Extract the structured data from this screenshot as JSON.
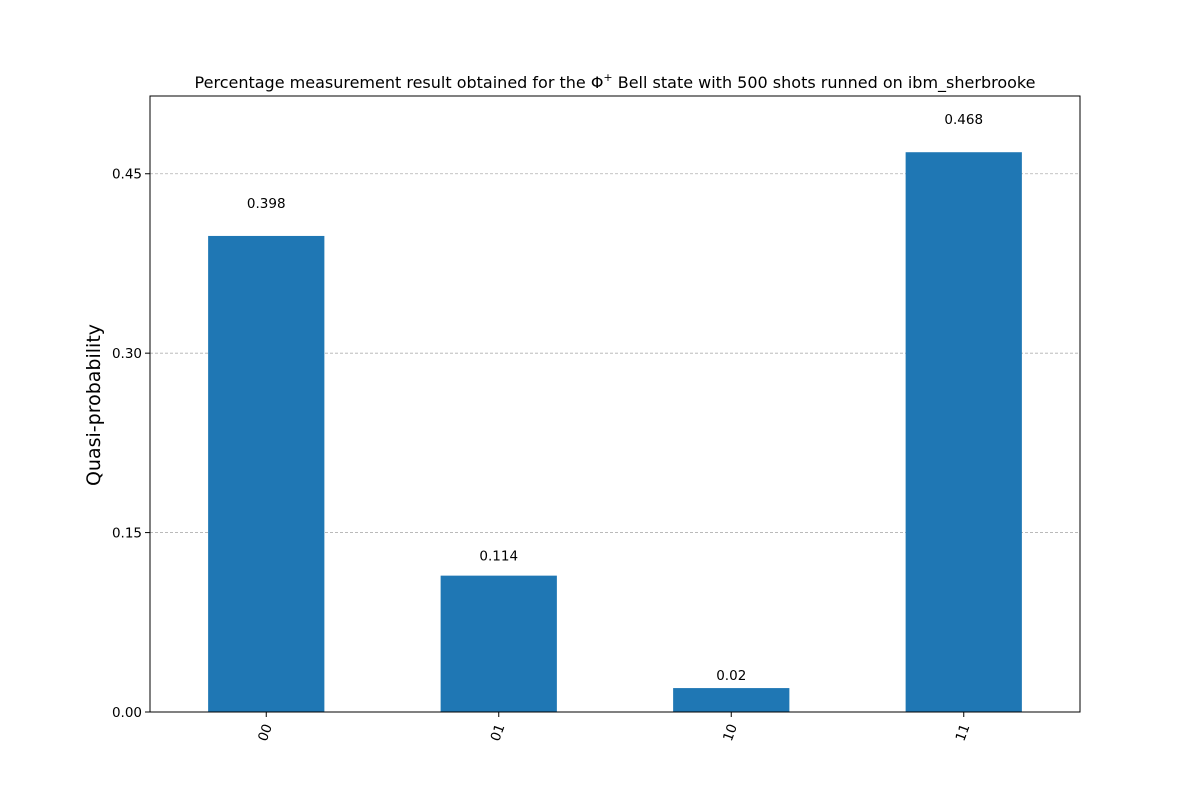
{
  "chart_data": {
    "type": "bar",
    "title_prefix": "Percentage measurement result obtained for the Φ",
    "title_superscript": "+",
    "title_suffix": " Bell state with 500 shots runned on ibm_sherbrooke",
    "xlabel": "",
    "ylabel": "Quasi-probability",
    "categories": [
      "00",
      "01",
      "10",
      "11"
    ],
    "values": [
      0.398,
      0.114,
      0.02,
      0.468
    ],
    "value_labels": [
      "0.398",
      "0.114",
      "0.02",
      "0.468"
    ],
    "yticks": [
      0.0,
      0.15,
      0.3,
      0.45
    ],
    "ytick_labels": [
      "0.00",
      "0.15",
      "0.30",
      "0.45"
    ],
    "ylim": [
      0,
      0.515
    ],
    "grid": "y-dashed",
    "bar_color": "#1f77b4",
    "grid_color": "#b0b0b0"
  }
}
